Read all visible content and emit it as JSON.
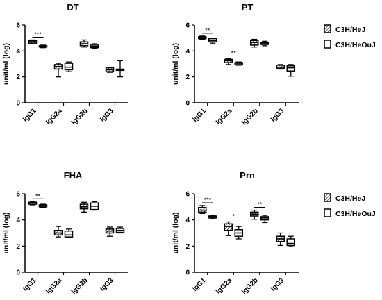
{
  "chart_data": [
    {
      "type": "box",
      "title": "DT",
      "ylabel": "unit/ml (log)",
      "ylim": [
        0,
        6
      ],
      "yticks": [
        "0",
        "2",
        "4",
        "6"
      ],
      "categories": [
        "IgG1",
        "IgG2a",
        "IgG2b",
        "IgG3"
      ],
      "series": [
        {
          "name": "C3H/HeJ",
          "pattern": "hatched",
          "boxes": [
            {
              "min": 4.55,
              "q1": 4.6,
              "median": 4.72,
              "q3": 4.8,
              "max": 4.85
            },
            {
              "min": 2.0,
              "q1": 2.6,
              "median": 2.8,
              "q3": 2.95,
              "max": 3.05
            },
            {
              "min": 4.3,
              "q1": 4.4,
              "median": 4.55,
              "q3": 4.7,
              "max": 4.85
            },
            {
              "min": 2.35,
              "q1": 2.4,
              "median": 2.55,
              "q3": 2.7,
              "max": 2.75
            }
          ]
        },
        {
          "name": "C3H/HeOuJ",
          "pattern": "open",
          "boxes": [
            {
              "min": 4.25,
              "q1": 4.3,
              "median": 4.35,
              "q3": 4.4,
              "max": 4.45
            },
            {
              "min": 2.4,
              "q1": 2.55,
              "median": 2.75,
              "q3": 3.05,
              "max": 3.15
            },
            {
              "min": 4.2,
              "q1": 4.25,
              "median": 4.35,
              "q3": 4.45,
              "max": 4.55
            },
            {
              "min": 2.0,
              "q1": 2.5,
              "median": 2.55,
              "q3": 2.6,
              "max": 3.25
            }
          ]
        }
      ],
      "annotations": [
        {
          "group": 0,
          "text": "***"
        }
      ]
    },
    {
      "type": "box",
      "title": "PT",
      "ylabel": "unit/ml (log)",
      "ylim": [
        0,
        6
      ],
      "yticks": [
        "0",
        "2",
        "4",
        "6"
      ],
      "categories": [
        "IgG1",
        "IgG2a",
        "IgG2b",
        "IgG3"
      ],
      "series": [
        {
          "name": "C3H/HeJ",
          "pattern": "hatched",
          "boxes": [
            {
              "min": 4.9,
              "q1": 4.95,
              "median": 5.05,
              "q3": 5.1,
              "max": 5.15
            },
            {
              "min": 2.95,
              "q1": 3.1,
              "median": 3.25,
              "q3": 3.35,
              "max": 3.4
            },
            {
              "min": 4.3,
              "q1": 4.45,
              "median": 4.65,
              "q3": 4.8,
              "max": 4.9
            },
            {
              "min": 2.6,
              "q1": 2.65,
              "median": 2.75,
              "q3": 2.9,
              "max": 2.95
            }
          ]
        },
        {
          "name": "C3H/HeOuJ",
          "pattern": "open",
          "boxes": [
            {
              "min": 4.6,
              "q1": 4.7,
              "median": 4.8,
              "q3": 4.95,
              "max": 5.0
            },
            {
              "min": 2.9,
              "q1": 2.95,
              "median": 3.05,
              "q3": 3.1,
              "max": 3.15
            },
            {
              "min": 4.4,
              "q1": 4.5,
              "median": 4.6,
              "q3": 4.65,
              "max": 4.75
            },
            {
              "min": 2.05,
              "q1": 2.45,
              "median": 2.7,
              "q3": 2.85,
              "max": 2.95
            }
          ]
        }
      ],
      "annotations": [
        {
          "group": 0,
          "text": "**"
        },
        {
          "group": 1,
          "text": "**"
        }
      ]
    },
    {
      "type": "box",
      "title": "FHA",
      "ylabel": "unit/ml (log)",
      "ylim": [
        0,
        6
      ],
      "yticks": [
        "0",
        "2",
        "4",
        "6"
      ],
      "categories": [
        "IgG1",
        "IgG2a",
        "IgG2b",
        "IgG3"
      ],
      "series": [
        {
          "name": "C3H/HeJ",
          "pattern": "hatched",
          "boxes": [
            {
              "min": 5.15,
              "q1": 5.2,
              "median": 5.3,
              "q3": 5.35,
              "max": 5.4
            },
            {
              "min": 2.7,
              "q1": 2.85,
              "median": 3.0,
              "q3": 3.2,
              "max": 3.5
            },
            {
              "min": 4.6,
              "q1": 4.85,
              "median": 5.0,
              "q3": 5.2,
              "max": 5.35
            },
            {
              "min": 2.75,
              "q1": 3.0,
              "median": 3.15,
              "q3": 3.3,
              "max": 3.45
            }
          ]
        },
        {
          "name": "C3H/HeOuJ",
          "pattern": "open",
          "boxes": [
            {
              "min": 4.95,
              "q1": 5.0,
              "median": 5.1,
              "q3": 5.15,
              "max": 5.2
            },
            {
              "min": 2.65,
              "q1": 2.7,
              "median": 2.85,
              "q3": 3.15,
              "max": 3.3
            },
            {
              "min": 4.75,
              "q1": 4.8,
              "median": 5.05,
              "q3": 5.3,
              "max": 5.4
            },
            {
              "min": 3.0,
              "q1": 3.05,
              "median": 3.2,
              "q3": 3.35,
              "max": 3.45
            }
          ]
        }
      ],
      "annotations": [
        {
          "group": 0,
          "text": "**"
        }
      ]
    },
    {
      "type": "box",
      "title": "Prn",
      "ylabel": "unit/ml (log)",
      "ylim": [
        0,
        6
      ],
      "yticks": [
        "0",
        "2",
        "4",
        "6"
      ],
      "categories": [
        "IgG1",
        "IgG2a",
        "IgG2b",
        "IgG3"
      ],
      "series": [
        {
          "name": "C3H/HeJ",
          "pattern": "hatched",
          "boxes": [
            {
              "min": 4.5,
              "q1": 4.6,
              "median": 4.75,
              "q3": 4.95,
              "max": 5.1
            },
            {
              "min": 2.8,
              "q1": 3.2,
              "median": 3.5,
              "q3": 3.7,
              "max": 3.85
            },
            {
              "min": 4.05,
              "q1": 4.3,
              "median": 4.45,
              "q3": 4.6,
              "max": 4.75
            },
            {
              "min": 2.05,
              "q1": 2.35,
              "median": 2.55,
              "q3": 2.75,
              "max": 3.0
            }
          ]
        },
        {
          "name": "C3H/HeOuJ",
          "pattern": "open",
          "boxes": [
            {
              "min": 4.1,
              "q1": 4.15,
              "median": 4.25,
              "q3": 4.3,
              "max": 4.35
            },
            {
              "min": 2.55,
              "q1": 2.75,
              "median": 3.0,
              "q3": 3.25,
              "max": 3.5
            },
            {
              "min": 3.8,
              "q1": 4.0,
              "median": 4.15,
              "q3": 4.25,
              "max": 4.35
            },
            {
              "min": 1.95,
              "q1": 2.05,
              "median": 2.2,
              "q3": 2.55,
              "max": 2.75
            }
          ]
        }
      ],
      "annotations": [
        {
          "group": 0,
          "text": "***"
        },
        {
          "group": 1,
          "text": "*"
        },
        {
          "group": 2,
          "text": "**"
        }
      ]
    }
  ],
  "legends": [
    {
      "entries": [
        "C3H/HeJ",
        "C3H/HeOuJ"
      ]
    },
    {
      "entries": [
        "C3H/HeJ",
        "C3H/HeOuJ"
      ]
    }
  ],
  "colors": {
    "stroke": "#000000",
    "background": "#ffffff",
    "hatch_fill": "#ffffff"
  }
}
